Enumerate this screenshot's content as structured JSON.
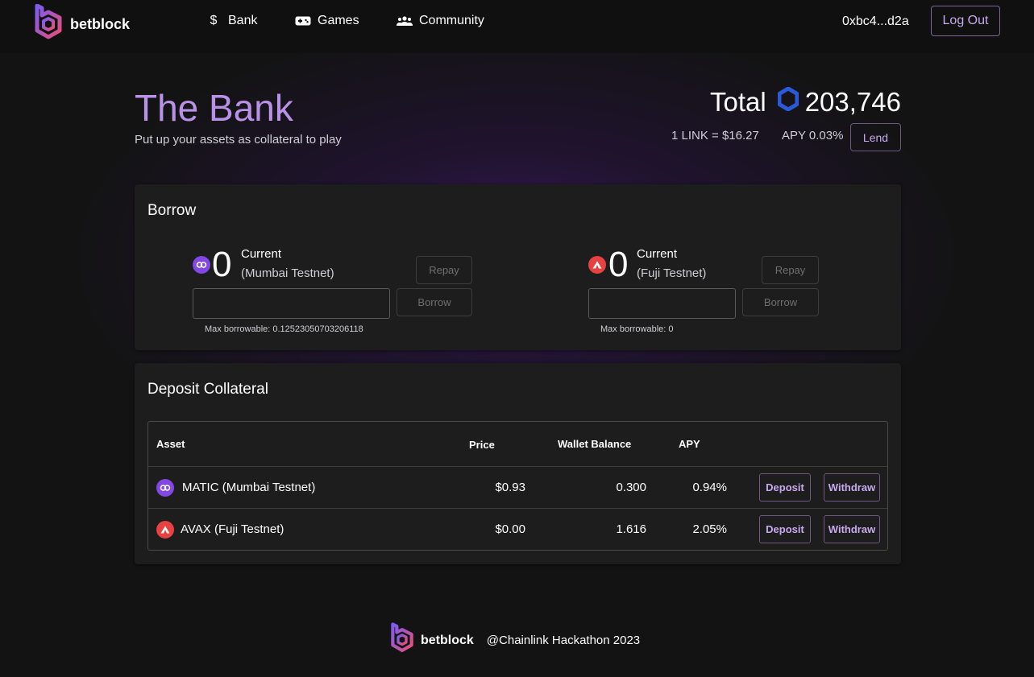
{
  "nav": {
    "brand": "betblock",
    "links": [
      {
        "label": "Bank",
        "icon": "dollar-icon"
      },
      {
        "label": "Games",
        "icon": "gamepad-icon"
      },
      {
        "label": "Community",
        "icon": "people-icon"
      }
    ],
    "wallet": "0xbc4...d2a",
    "logout_label": "Log Out"
  },
  "header": {
    "title": "The Bank",
    "subtitle": "Put up your assets as collateral to play",
    "total_label": "Total",
    "total_value": "203,746",
    "rate": "1 LINK = $16.27",
    "apy": "APY 0.03%",
    "lend_label": "Lend"
  },
  "borrow": {
    "title": "Borrow",
    "panels": [
      {
        "coin": "matic",
        "amount": "0",
        "current_label": "Current",
        "network": "(Mumbai Testnet)",
        "repay_label": "Repay",
        "borrow_label": "Borrow",
        "input_value": "",
        "max_label": "Max borrowable: 0.12523050703206118"
      },
      {
        "coin": "avax",
        "amount": "0",
        "current_label": "Current",
        "network": "(Fuji Testnet)",
        "repay_label": "Repay",
        "borrow_label": "Borrow",
        "input_value": "",
        "max_label": "Max borrowable: 0"
      }
    ]
  },
  "deposit": {
    "title": "Deposit Collateral",
    "columns": [
      "Asset",
      "Price",
      "Wallet Balance",
      "APY"
    ],
    "rows": [
      {
        "coin": "matic",
        "asset": "MATIC (Mumbai Testnet)",
        "price": "$0.93",
        "balance": "0.300",
        "apy": "0.94%",
        "deposit_label": "Deposit",
        "withdraw_label": "Withdraw"
      },
      {
        "coin": "avax",
        "asset": "AVAX (Fuji Testnet)",
        "price": "$0.00",
        "balance": "1.616",
        "apy": "2.05%",
        "deposit_label": "Deposit",
        "withdraw_label": "Withdraw"
      }
    ]
  },
  "footer": {
    "brand": "betblock",
    "credit": "@Chainlink Hackathon 2023"
  },
  "colors": {
    "accent": "#b892e6",
    "button_text": "#c8a9ef",
    "matic": "#8247e5",
    "avax": "#e84142",
    "link": "#2a5ada"
  }
}
